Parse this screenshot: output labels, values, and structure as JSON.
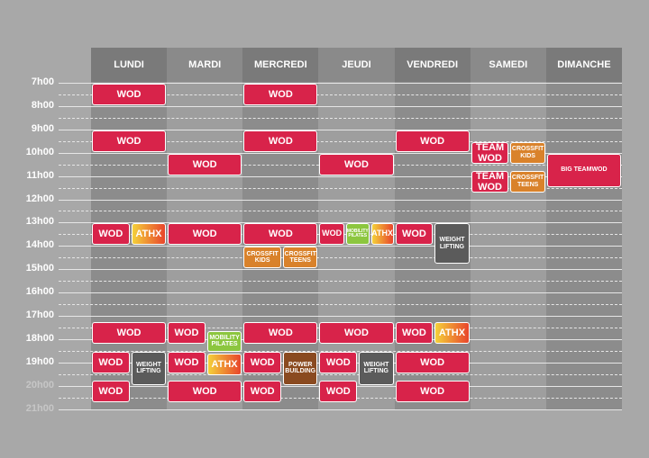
{
  "days": [
    "LUNDI",
    "MARDI",
    "MERCREDI",
    "JEUDI",
    "VENDREDI",
    "SAMEDI",
    "DIMANCHE"
  ],
  "hours": [
    "7h00",
    "8h00",
    "9h00",
    "10h00",
    "11h00",
    "12h00",
    "13h00",
    "14h00",
    "15h00",
    "16h00",
    "17h00",
    "18h00",
    "19h00",
    "20h00",
    "21h00"
  ],
  "events": [
    {
      "label": "WOD"
    },
    {
      "label": "WOD"
    },
    {
      "label": "WOD"
    },
    {
      "label": "ATHX"
    },
    {
      "label": "WOD"
    },
    {
      "label": "WOD"
    },
    {
      "label": "WEIGHT LIFTING"
    },
    {
      "label": "WOD"
    },
    {
      "label": "WOD"
    },
    {
      "label": "WOD"
    },
    {
      "label": "WOD"
    },
    {
      "label": "MOBILITY PILATES"
    },
    {
      "label": "WOD"
    },
    {
      "label": "ATHX"
    },
    {
      "label": "WOD"
    },
    {
      "label": "WOD"
    },
    {
      "label": "WOD"
    },
    {
      "label": "WOD"
    },
    {
      "label": "CROSSFIT KIDS"
    },
    {
      "label": "CROSSFIT TEENS"
    },
    {
      "label": "WOD"
    },
    {
      "label": "WOD"
    },
    {
      "label": "POWER BUILDING"
    },
    {
      "label": "WOD"
    },
    {
      "label": "WOD"
    },
    {
      "label": "WOD"
    },
    {
      "label": "MOBILITY PILATES"
    },
    {
      "label": "ATHX"
    },
    {
      "label": "WOD"
    },
    {
      "label": "WOD"
    },
    {
      "label": "WEIGHT LIFTING"
    },
    {
      "label": "WOD"
    },
    {
      "label": "WOD"
    },
    {
      "label": "WOD"
    },
    {
      "label": "WEIGHT LIFTING"
    },
    {
      "label": "WOD"
    },
    {
      "label": "ATHX"
    },
    {
      "label": "WOD"
    },
    {
      "label": "WOD"
    },
    {
      "label": "TEAM WOD"
    },
    {
      "label": "CROSSFIT KIDS"
    },
    {
      "label": "TEAM WOD"
    },
    {
      "label": "CROSSFIT TEENS"
    },
    {
      "label": "BIG TEAMWOD"
    }
  ]
}
